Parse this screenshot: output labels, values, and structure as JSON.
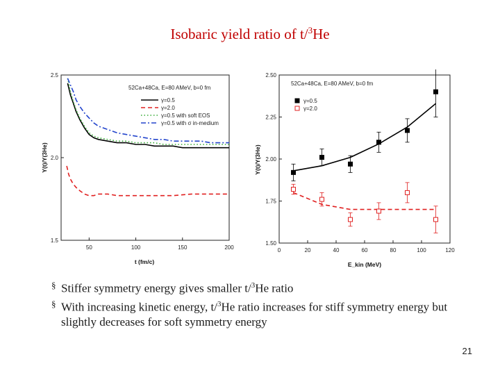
{
  "title": {
    "prefix": "Isobaric yield ratio of t/",
    "sup": "3",
    "suffix": "He"
  },
  "chart_data": [
    {
      "type": "line",
      "title": "",
      "annotation": "52Ca+48Ca, E=80 AMeV, b=0 fm",
      "xlabel": "t (fm/c)",
      "ylabel": "Y(t)/Y(3He)",
      "xlim": [
        20,
        200
      ],
      "ylim": [
        1.5,
        2.5
      ],
      "xticks": [
        50,
        100,
        150,
        200
      ],
      "yticks": [
        1.5,
        2.0,
        2.5
      ],
      "legend_position": "top-right",
      "series": [
        {
          "name": "γ=0.5",
          "color": "#000000",
          "dash": "solid",
          "x": [
            27,
            30,
            33,
            36,
            40,
            45,
            50,
            55,
            60,
            70,
            80,
            90,
            100,
            110,
            120,
            130,
            140,
            150,
            160,
            170,
            180,
            190,
            200
          ],
          "y": [
            2.45,
            2.38,
            2.33,
            2.28,
            2.23,
            2.18,
            2.14,
            2.12,
            2.11,
            2.1,
            2.09,
            2.09,
            2.08,
            2.08,
            2.07,
            2.07,
            2.07,
            2.06,
            2.06,
            2.06,
            2.06,
            2.06,
            2.06
          ]
        },
        {
          "name": "γ=2.0",
          "color": "#e02020",
          "dash": "dashed",
          "x": [
            26,
            28,
            30,
            33,
            36,
            40,
            45,
            50,
            55,
            60,
            70,
            80,
            90,
            100,
            120,
            140,
            160,
            180,
            200
          ],
          "y": [
            1.95,
            1.9,
            1.87,
            1.84,
            1.82,
            1.8,
            1.78,
            1.77,
            1.77,
            1.78,
            1.78,
            1.77,
            1.77,
            1.77,
            1.77,
            1.77,
            1.78,
            1.78,
            1.78
          ]
        },
        {
          "name": "γ=0.5 with soft EOS",
          "color": "#33aa33",
          "dash": "dotted",
          "x": [
            27,
            30,
            33,
            36,
            40,
            45,
            50,
            55,
            60,
            70,
            80,
            90,
            100,
            110,
            120,
            130,
            140,
            150,
            160,
            170,
            180,
            190,
            200
          ],
          "y": [
            2.48,
            2.4,
            2.34,
            2.29,
            2.24,
            2.19,
            2.15,
            2.13,
            2.12,
            2.11,
            2.1,
            2.1,
            2.09,
            2.09,
            2.09,
            2.08,
            2.08,
            2.08,
            2.08,
            2.08,
            2.08,
            2.08,
            2.08
          ]
        },
        {
          "name": "γ=0.5 with σ in-medium",
          "color": "#2244cc",
          "dash": "dashdot",
          "x": [
            27,
            30,
            33,
            36,
            40,
            45,
            50,
            55,
            60,
            70,
            80,
            90,
            100,
            110,
            120,
            130,
            140,
            150,
            160,
            170,
            180,
            190,
            200
          ],
          "y": [
            2.48,
            2.44,
            2.4,
            2.35,
            2.31,
            2.27,
            2.24,
            2.21,
            2.19,
            2.17,
            2.15,
            2.14,
            2.13,
            2.12,
            2.11,
            2.11,
            2.1,
            2.1,
            2.1,
            2.1,
            2.09,
            2.09,
            2.09
          ]
        }
      ]
    },
    {
      "type": "scatter",
      "title": "",
      "annotation": "52Ca+48Ca, E=80 AMeV, b=0 fm",
      "xlabel": "E_kin (MeV)",
      "ylabel": "Y(t)/Y(3He)",
      "xlim": [
        0,
        120
      ],
      "ylim": [
        1.5,
        2.5
      ],
      "xticks": [
        0,
        20,
        40,
        60,
        80,
        100,
        120
      ],
      "yticks": [
        1.5,
        1.75,
        2.0,
        2.25,
        2.5
      ],
      "legend_position": "top-left",
      "series": [
        {
          "name": "γ=0.5",
          "color": "#000000",
          "marker": "filled-square",
          "x": [
            10,
            30,
            50,
            70,
            90,
            110
          ],
          "y": [
            1.92,
            2.01,
            1.97,
            2.1,
            2.17,
            2.4
          ],
          "err": [
            0.05,
            0.05,
            0.05,
            0.06,
            0.07,
            0.15
          ],
          "fit": {
            "x": [
              10,
              30,
              50,
              70,
              90,
              110
            ],
            "y": [
              1.93,
              1.96,
              2.01,
              2.09,
              2.19,
              2.33
            ]
          }
        },
        {
          "name": "γ=2.0",
          "color": "#e02020",
          "marker": "open-square",
          "x": [
            10,
            30,
            50,
            70,
            90,
            110
          ],
          "y": [
            1.82,
            1.76,
            1.64,
            1.69,
            1.8,
            1.64
          ],
          "err": [
            0.03,
            0.04,
            0.04,
            0.05,
            0.06,
            0.08
          ],
          "fit": {
            "x": [
              10,
              30,
              50,
              70,
              90,
              110
            ],
            "y": [
              1.8,
              1.73,
              1.7,
              1.7,
              1.7,
              1.7
            ]
          }
        }
      ]
    }
  ],
  "bullets": [
    {
      "prefix": "Stiffer symmetry energy gives smaller t/",
      "sup": "3",
      "suffix": "He ratio"
    },
    {
      "prefix": "With increasing kinetic energy, t/",
      "sup": "3",
      "suffix": "He ratio increases for stiff symmetry energy but slightly decreases for soft symmetry energy"
    }
  ],
  "bullet_mark": "§",
  "page_number": "21"
}
